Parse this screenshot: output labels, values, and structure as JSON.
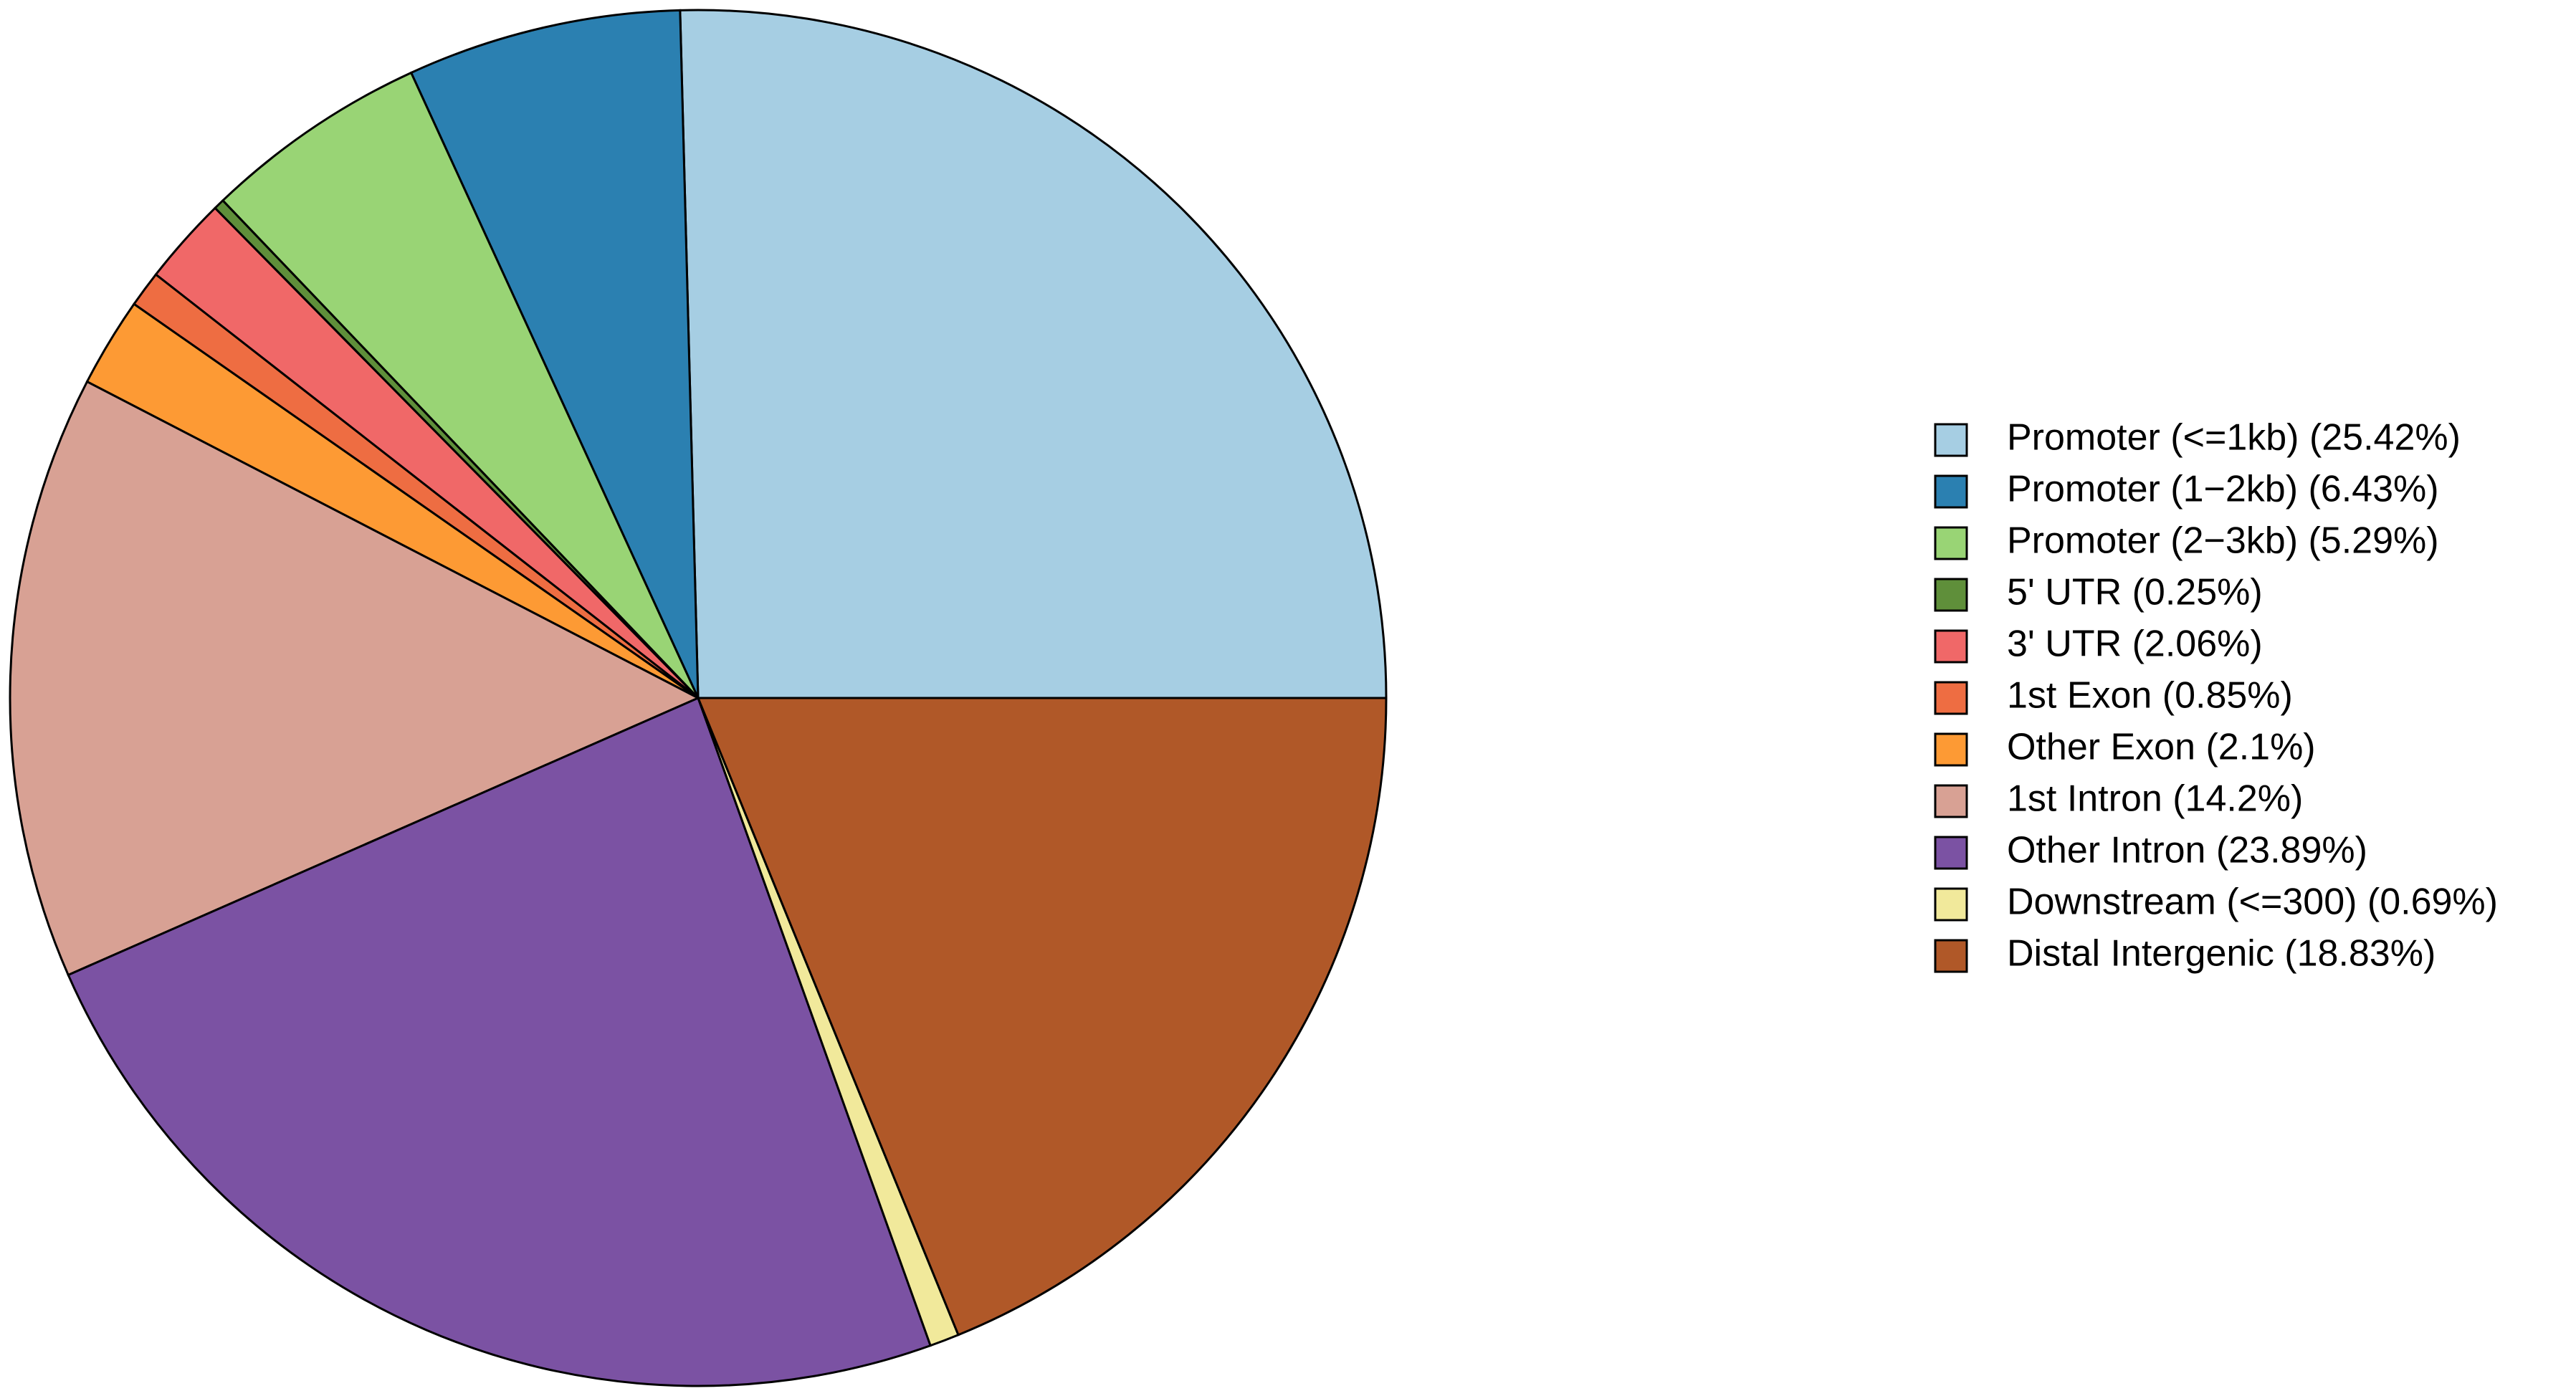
{
  "chart_data": {
    "type": "pie",
    "categories": [
      "Promoter (<=1kb) (25.42%)",
      "Promoter (1−2kb) (6.43%)",
      "Promoter (2−3kb) (5.29%)",
      "5' UTR (0.25%)",
      "3' UTR (2.06%)",
      "1st Exon (0.85%)",
      "Other Exon (2.1%)",
      "1st Intron (14.2%)",
      "Other Intron (23.89%)",
      "Downstream (<=300) (0.69%)",
      "Distal Intergenic (18.83%)"
    ],
    "values": [
      25.42,
      6.43,
      5.29,
      0.25,
      2.06,
      0.85,
      2.1,
      14.2,
      23.89,
      0.69,
      18.83
    ],
    "colors": [
      "#a6cee3",
      "#2b80b1",
      "#99d475",
      "#5f8f3a",
      "#f06868",
      "#ee6d42",
      "#fd9a34",
      "#d8a194",
      "#7b52a3",
      "#f1e99b",
      "#b05828"
    ]
  }
}
